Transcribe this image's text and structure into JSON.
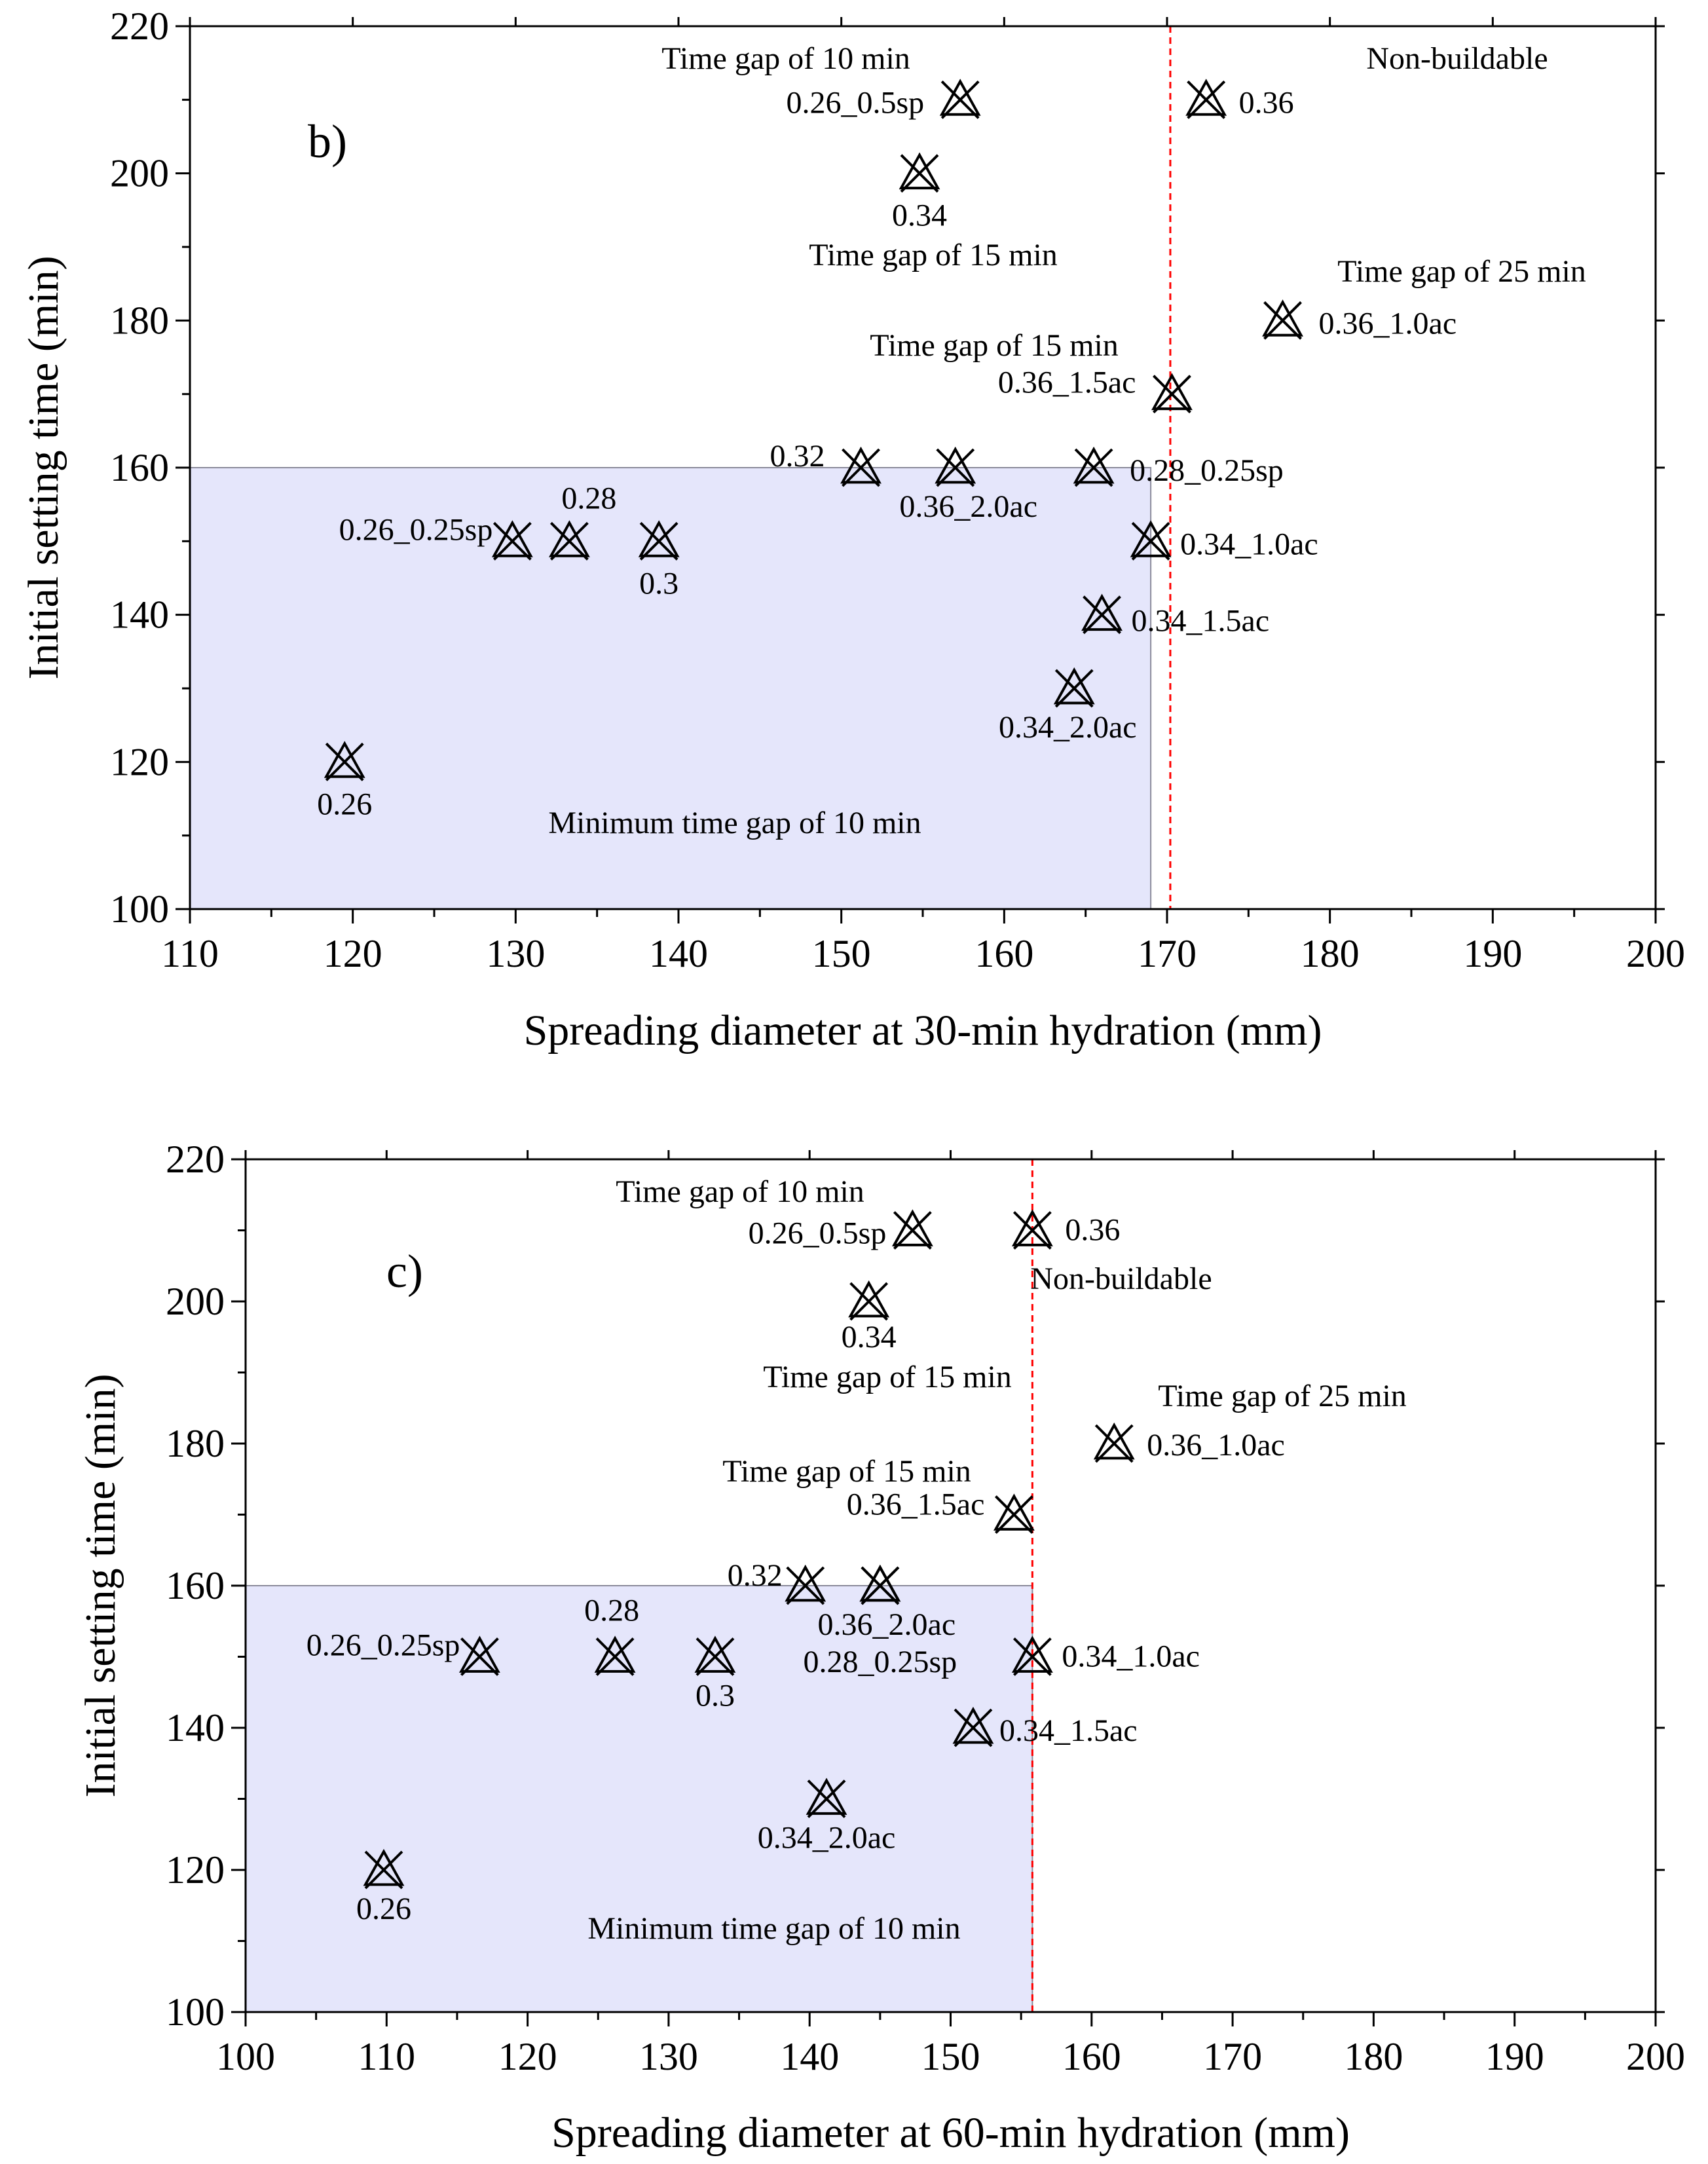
{
  "chart_data": [
    {
      "type": "scatter",
      "panel_label": "b)",
      "xlabel": "Spreading diameter at 30-min hydration (mm)",
      "ylabel": "Initial setting time (min)",
      "xlim": [
        110,
        200
      ],
      "ylim": [
        100,
        220
      ],
      "xticks": [
        110,
        120,
        130,
        140,
        150,
        160,
        170,
        180,
        190,
        200
      ],
      "yticks": [
        100,
        120,
        140,
        160,
        180,
        200,
        220
      ],
      "region": {
        "x_max": 169,
        "y_max": 160,
        "label": "Minimum time gap of 10 min",
        "color": "#e5e6fb"
      },
      "threshold": {
        "x": 170.2,
        "color": "#ff0000"
      },
      "points": [
        {
          "label": "0.26",
          "x": 119.5,
          "y": 120
        },
        {
          "label": "0.26_0.25sp",
          "x": 129.8,
          "y": 150
        },
        {
          "label": "0.28",
          "x": 133.3,
          "y": 150
        },
        {
          "label": "0.3",
          "x": 138.8,
          "y": 150
        },
        {
          "label": "0.32",
          "x": 151.2,
          "y": 160
        },
        {
          "label": "0.36_2.0ac",
          "x": 157.0,
          "y": 160
        },
        {
          "label": "0.28_0.25sp",
          "x": 165.5,
          "y": 160
        },
        {
          "label": "0.34_1.0ac",
          "x": 169.0,
          "y": 150
        },
        {
          "label": "0.34_1.5ac",
          "x": 166.0,
          "y": 140
        },
        {
          "label": "0.34_2.0ac",
          "x": 164.3,
          "y": 130
        },
        {
          "label": "0.36_1.5ac",
          "x": 170.3,
          "y": 170
        },
        {
          "label": "0.36_1.0ac",
          "x": 177.1,
          "y": 180
        },
        {
          "label": "0.34",
          "x": 154.8,
          "y": 200
        },
        {
          "label": "0.26_0.5sp",
          "x": 157.3,
          "y": 210
        },
        {
          "label": "0.36",
          "x": 172.4,
          "y": 210
        }
      ],
      "annotations": [
        {
          "text": "Time gap of 10 min"
        },
        {
          "text": "Time gap of 15 min"
        },
        {
          "text": "Time gap of 15 min"
        },
        {
          "text": "Time gap of 25 min"
        },
        {
          "text": "Non-buildable"
        }
      ]
    },
    {
      "type": "scatter",
      "panel_label": "c)",
      "xlabel": "Spreading diameter at 60-min hydration (mm)",
      "ylabel": "Initial setting time (min)",
      "xlim": [
        100,
        200
      ],
      "ylim": [
        100,
        220
      ],
      "xticks": [
        100,
        110,
        120,
        130,
        140,
        150,
        160,
        170,
        180,
        190,
        200
      ],
      "yticks": [
        100,
        120,
        140,
        160,
        180,
        200,
        220
      ],
      "region": {
        "x_max": 155.8,
        "y_max": 160,
        "label": "Minimum time gap of 10 min",
        "color": "#e5e6fb"
      },
      "threshold": {
        "x": 155.8,
        "color": "#ff0000"
      },
      "points": [
        {
          "label": "0.26",
          "x": 109.8,
          "y": 120
        },
        {
          "label": "0.26_0.25sp",
          "x": 116.6,
          "y": 150
        },
        {
          "label": "0.28",
          "x": 126.2,
          "y": 150
        },
        {
          "label": "0.3",
          "x": 133.3,
          "y": 150
        },
        {
          "label": "0.32",
          "x": 139.7,
          "y": 160
        },
        {
          "label": "0.36_2.0ac",
          "x": 145.0,
          "y": 160
        },
        {
          "label": "0.28_0.25sp",
          "x": 145.0,
          "y": 160
        },
        {
          "label": "0.34_1.0ac",
          "x": 155.8,
          "y": 150
        },
        {
          "label": "0.34_1.5ac",
          "x": 151.6,
          "y": 140
        },
        {
          "label": "0.34_2.0ac",
          "x": 141.2,
          "y": 130
        },
        {
          "label": "0.36_1.5ac",
          "x": 154.5,
          "y": 170
        },
        {
          "label": "0.36_1.0ac",
          "x": 161.6,
          "y": 180
        },
        {
          "label": "0.34",
          "x": 144.2,
          "y": 200
        },
        {
          "label": "0.26_0.5sp",
          "x": 147.3,
          "y": 210
        },
        {
          "label": "0.36",
          "x": 155.8,
          "y": 210
        }
      ],
      "annotations": [
        {
          "text": "Time gap of 10 min"
        },
        {
          "text": "Time gap of 15 min"
        },
        {
          "text": "Time gap of 15 min"
        },
        {
          "text": "Time gap of 25 min"
        },
        {
          "text": "Non-buildable"
        }
      ]
    }
  ]
}
